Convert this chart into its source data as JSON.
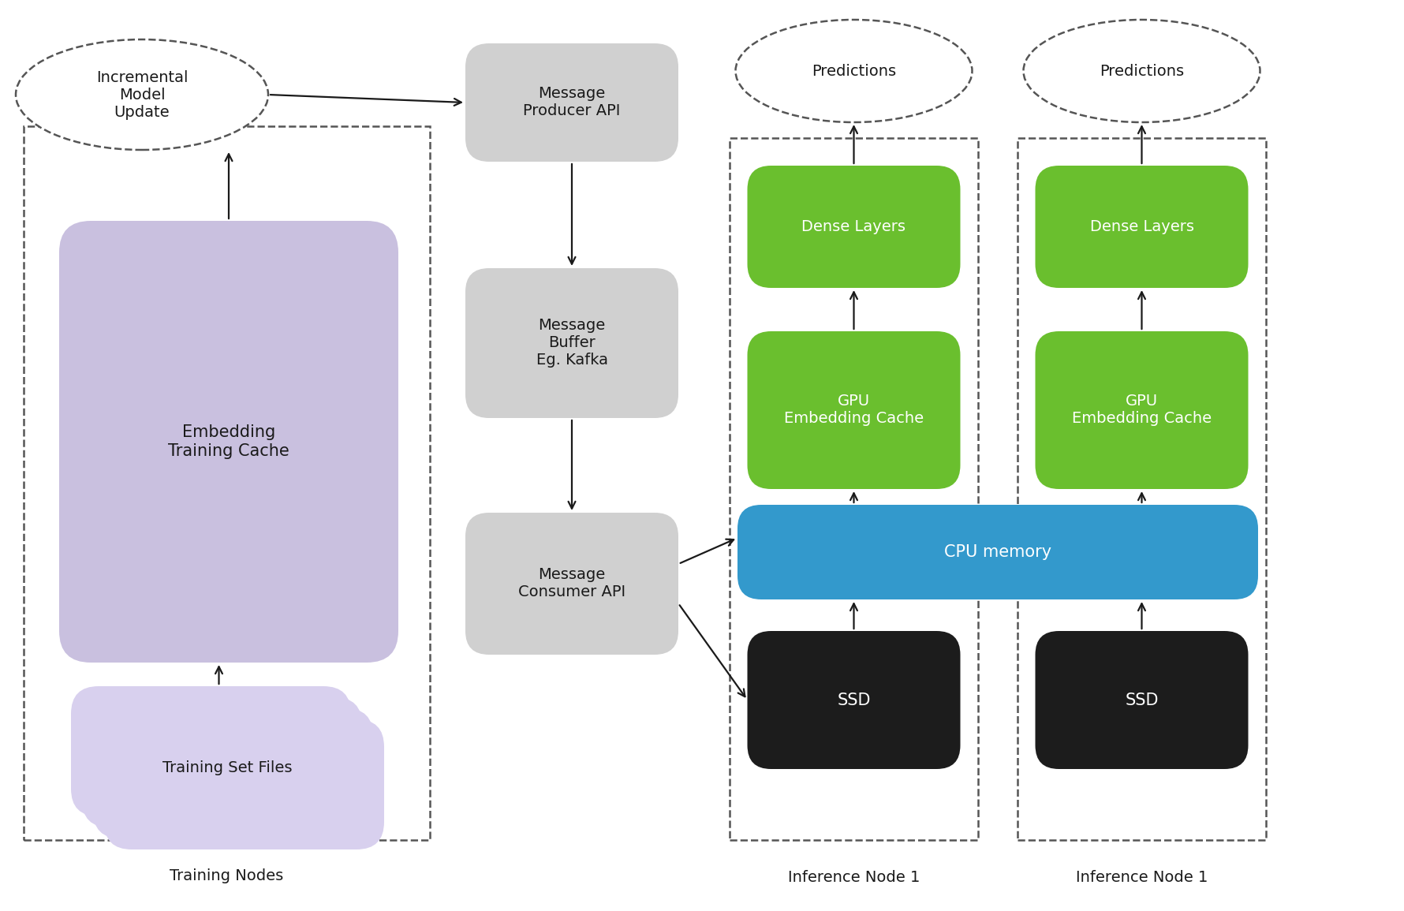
{
  "bg_color": "#ffffff",
  "colors": {
    "lavender": "#c9c0df",
    "lavender_light": "#d8d0ee",
    "gray_box": "#d0d0d0",
    "green": "#6abf2e",
    "blue": "#3399cc",
    "black_box": "#1c1c1c",
    "white_text": "#ffffff",
    "dark_text": "#1a1a1a",
    "dashed_border": "#555555",
    "arrow": "#1a1a1a"
  },
  "labels": {
    "incremental": "Incremental\nModel\nUpdate",
    "msg_producer": "Message\nProducer API",
    "msg_buffer": "Message\nBuffer\nEg. Kafka",
    "msg_consumer": "Message\nConsumer API",
    "embed_cache": "Embedding\nTraining Cache",
    "train_files": "Training Set Files",
    "predictions": "Predictions",
    "dense_layers": "Dense Layers",
    "gpu_embed": "GPU\nEmbedding Cache",
    "cpu_memory": "CPU memory",
    "ssd": "SSD",
    "training_nodes": "Training Nodes",
    "inf_node1": "Inference Node 1",
    "inf_node2": "Inference Node 1"
  },
  "figsize": [
    17.8,
    11.55
  ],
  "dpi": 100
}
